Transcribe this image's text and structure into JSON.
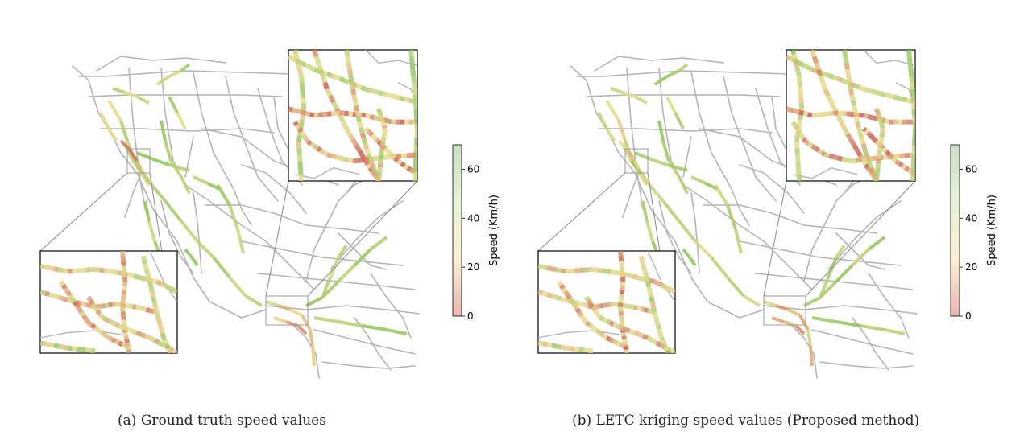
{
  "figure": {
    "panels": [
      {
        "id": "a",
        "label": "(a)",
        "caption": "Ground truth speed values",
        "noise_seed": 7
      },
      {
        "id": "b",
        "label": "(b)",
        "caption": "LETC kriging speed values (Proposed method)",
        "noise_seed": 19
      }
    ],
    "colorbar": {
      "title": "Speed (Km/h)",
      "ticks": [
        "0",
        "20",
        "40",
        "60"
      ],
      "min": 0,
      "max": 70,
      "colors": [
        "#e8b6b3",
        "#fbf1d2",
        "#e7f3d4",
        "#c8e1c4"
      ]
    },
    "colors": {
      "road_network": "#b4b4b4",
      "slow": "#c8504a",
      "medium": "#e9dc8a",
      "fast": "#8fc45a",
      "inset_border": "#000000"
    }
  }
}
